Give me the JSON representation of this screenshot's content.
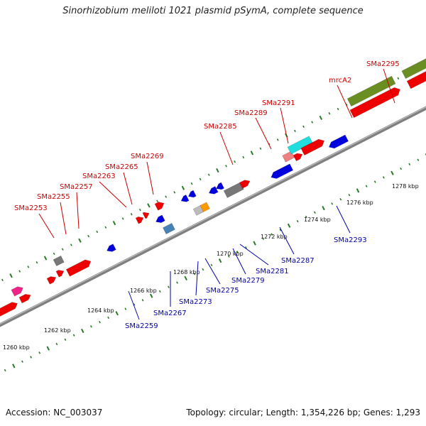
{
  "title": "Sinorhizobium meliloti 1021 plasmid pSymA, complete sequence",
  "footer": {
    "accession": "Accession: NC_003037",
    "summary": "Topology: circular; Length: 1,354,226 bp; Genes: 1,293"
  },
  "ruler": [
    "1260 kbp",
    "1262 kbp",
    "1264 kbp",
    "1266 kbp",
    "1268 kbp",
    "1270 kbp",
    "1272 kbp",
    "1274 kbp",
    "1276 kbp",
    "1278 kbp"
  ],
  "forward_labels": [
    "SMa2253",
    "SMa2255",
    "SMa2257",
    "SMa2263",
    "SMa2265",
    "SMa2269",
    "SMa2285",
    "SMa2289",
    "SMa2291",
    "mrcA2",
    "SMa2295"
  ],
  "reverse_labels": [
    "SMa2259",
    "SMa2267",
    "SMa2273",
    "SMa2275",
    "SMa2279",
    "SMa2281",
    "SMa2287",
    "SMa2293"
  ],
  "colors": {
    "forward_cds": "#ee0000",
    "reverse_cds": "#0000dd",
    "backbone": "#808080",
    "tick": "#2a7a2a",
    "olive": "#6b8e23",
    "cyan": "#22dddd",
    "magenta": "#ee2288",
    "gray": "#777777",
    "orange": "#ff9900",
    "steel": "#4682b4",
    "pink": "#f08080",
    "lightgray": "#bbbbbb"
  }
}
